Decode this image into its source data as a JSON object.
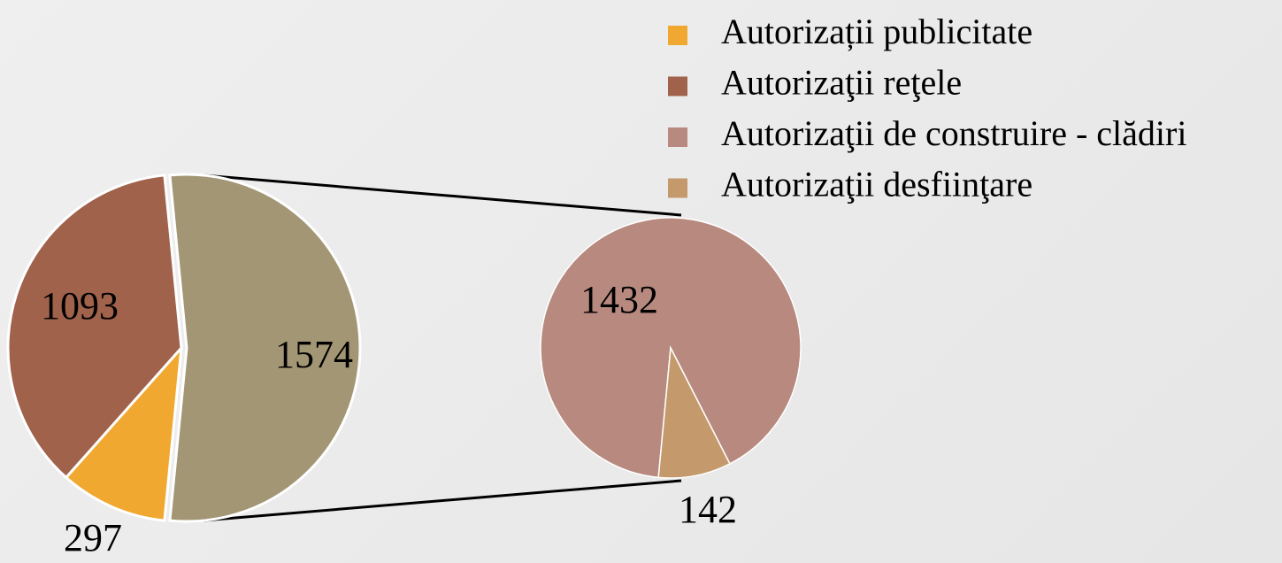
{
  "chart_data": {
    "type": "pie-of-pie",
    "main": {
      "categories": [
        "Autorizații publicitate",
        "Autorizaţii reţele",
        null
      ],
      "values": [
        297,
        1093,
        1574
      ],
      "colors": [
        "#f0a830",
        "#a0624b",
        "#a39674"
      ]
    },
    "secondary": {
      "categories": [
        "Autorizaţii de construire - clădiri",
        "Autorizaţii desfiinţare"
      ],
      "values": [
        1432,
        142
      ],
      "colors": [
        "#b88a7f",
        "#c49a6c"
      ]
    }
  }
}
